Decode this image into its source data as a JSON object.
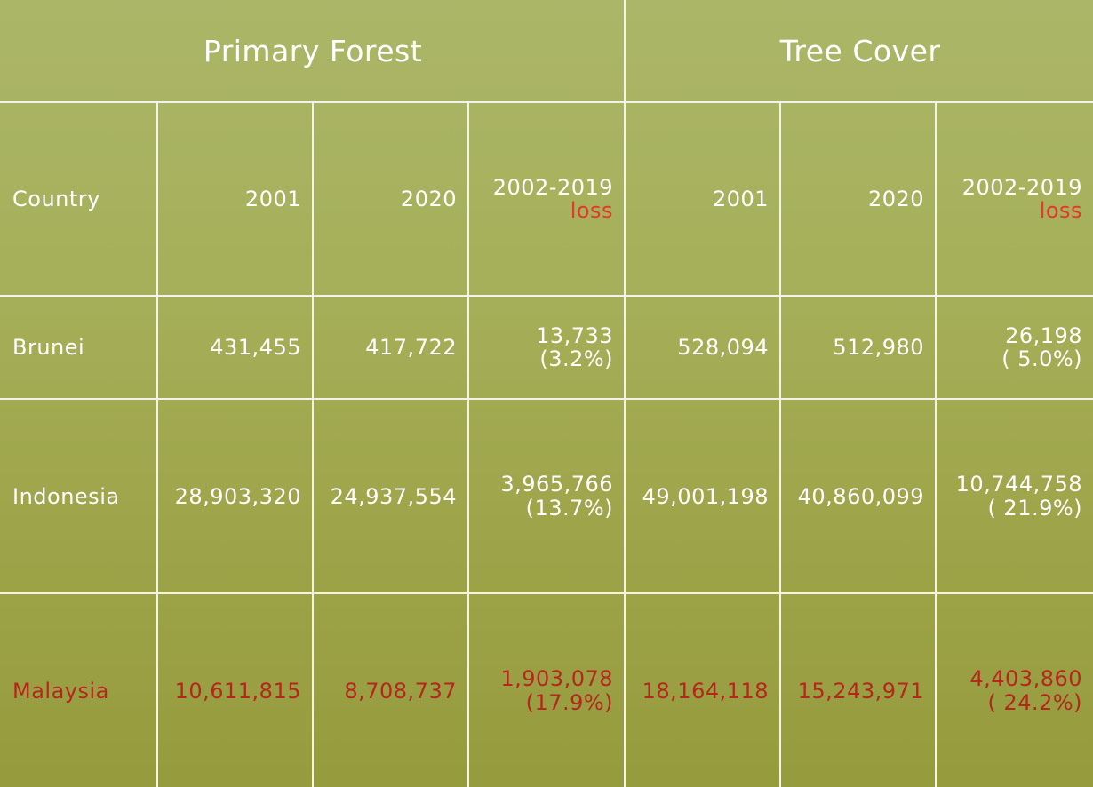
{
  "groups": {
    "primary_forest": "Primary Forest",
    "tree_cover": "Tree Cover"
  },
  "columns": {
    "country": "Country",
    "y2001": "2001",
    "y2020": "2020",
    "range": "2002-2019",
    "loss_word": "loss"
  },
  "rows": [
    {
      "country": "Brunei",
      "pf_2001": "431,455",
      "pf_2020": "417,722",
      "pf_loss": "13,733",
      "pf_loss_pct": "(3.2%)",
      "tc_2001": "528,094",
      "tc_2020": "512,980",
      "tc_loss": "26,198",
      "tc_loss_pct": "( 5.0%)"
    },
    {
      "country": "Indonesia",
      "pf_2001": "28,903,320",
      "pf_2020": "24,937,554",
      "pf_loss": "3,965,766",
      "pf_loss_pct": "(13.7%)",
      "tc_2001": "49,001,198",
      "tc_2020": "40,860,099",
      "tc_loss": "10,744,758",
      "tc_loss_pct": "( 21.9%)"
    },
    {
      "country": "Malaysia",
      "pf_2001": "10,611,815",
      "pf_2020": "8,708,737",
      "pf_loss": "1,903,078",
      "pf_loss_pct": "(17.9%)",
      "tc_2001": "18,164,118",
      "tc_2020": "15,243,971",
      "tc_loss": "4,403,860",
      "tc_loss_pct": "( 24.2%)"
    }
  ],
  "colors": {
    "background": "#a6b05a",
    "grid_lines": "#f3f3ea",
    "text": "#ffffff",
    "loss_word": "#e4382a",
    "highlight_row": "#b5271c"
  }
}
